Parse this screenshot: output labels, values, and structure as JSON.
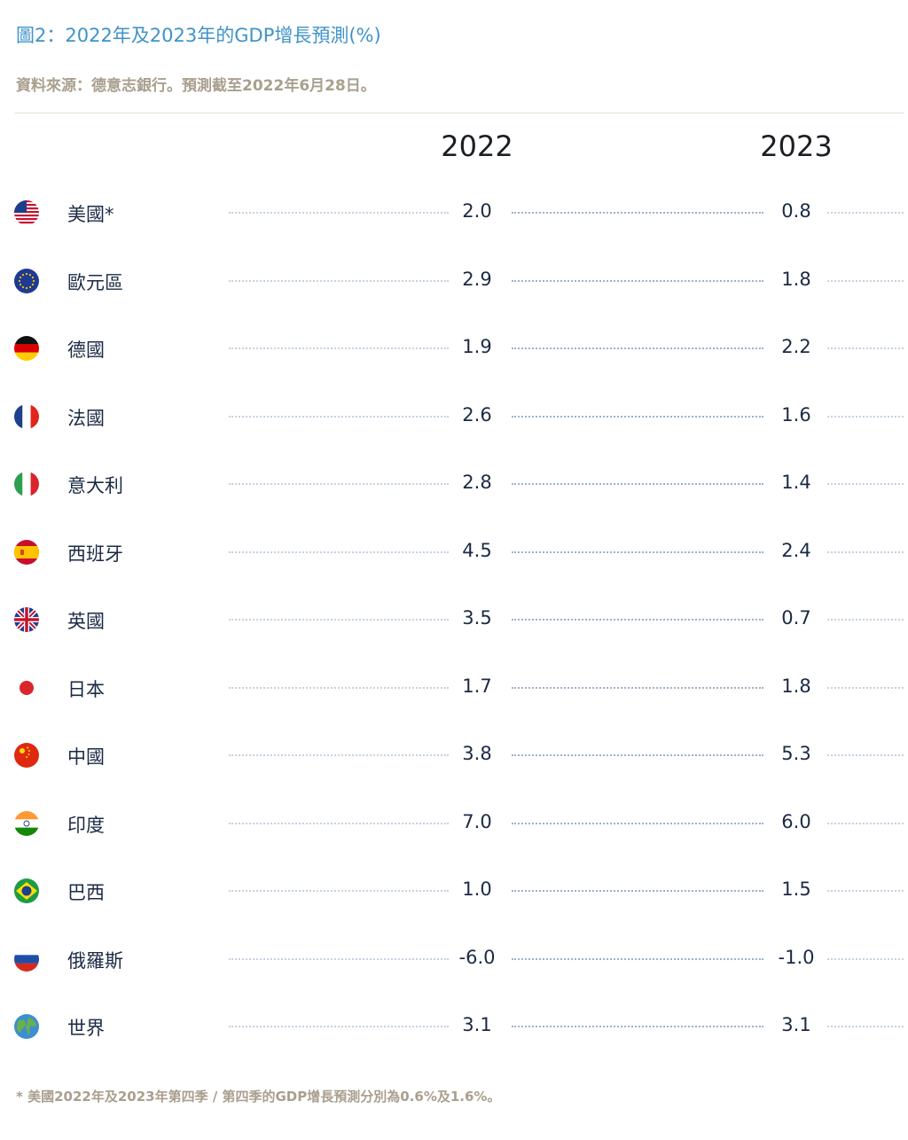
{
  "chart_title": "圖2：2022年及2023年的GDP增長預測(%)",
  "source": "資料來源：德意志銀行。預測截至2022年6月28日。",
  "footnote": "* 美國2022年及2023年第四季 / 第四季的GDP增長預測分別為0.6%及1.6%。",
  "chart_data": {
    "type": "table",
    "columns": [
      "2022",
      "2023"
    ],
    "rows": [
      {
        "country": "美國*",
        "flag": "us-flag-icon",
        "v2022": "2.0",
        "v2023": "0.8"
      },
      {
        "country": "歐元區",
        "flag": "eu-flag-icon",
        "v2022": "2.9",
        "v2023": "1.8"
      },
      {
        "country": "德國",
        "flag": "germany-flag-icon",
        "v2022": "1.9",
        "v2023": "2.2"
      },
      {
        "country": "法國",
        "flag": "france-flag-icon",
        "v2022": "2.6",
        "v2023": "1.6"
      },
      {
        "country": "意大利",
        "flag": "italy-flag-icon",
        "v2022": "2.8",
        "v2023": "1.4"
      },
      {
        "country": "西班牙",
        "flag": "spain-flag-icon",
        "v2022": "4.5",
        "v2023": "2.4"
      },
      {
        "country": "英國",
        "flag": "uk-flag-icon",
        "v2022": "3.5",
        "v2023": "0.7"
      },
      {
        "country": "日本",
        "flag": "japan-flag-icon",
        "v2022": "1.7",
        "v2023": "1.8"
      },
      {
        "country": "中國",
        "flag": "china-flag-icon",
        "v2022": "3.8",
        "v2023": "5.3"
      },
      {
        "country": "印度",
        "flag": "india-flag-icon",
        "v2022": "7.0",
        "v2023": "6.0"
      },
      {
        "country": "巴西",
        "flag": "brazil-flag-icon",
        "v2022": "1.0",
        "v2023": "1.5"
      },
      {
        "country": "俄羅斯",
        "flag": "russia-flag-icon",
        "v2022": "-6.0",
        "v2023": "-1.0"
      },
      {
        "country": "世界",
        "flag": "globe-icon",
        "v2022": "3.1",
        "v2023": "3.1"
      }
    ]
  }
}
